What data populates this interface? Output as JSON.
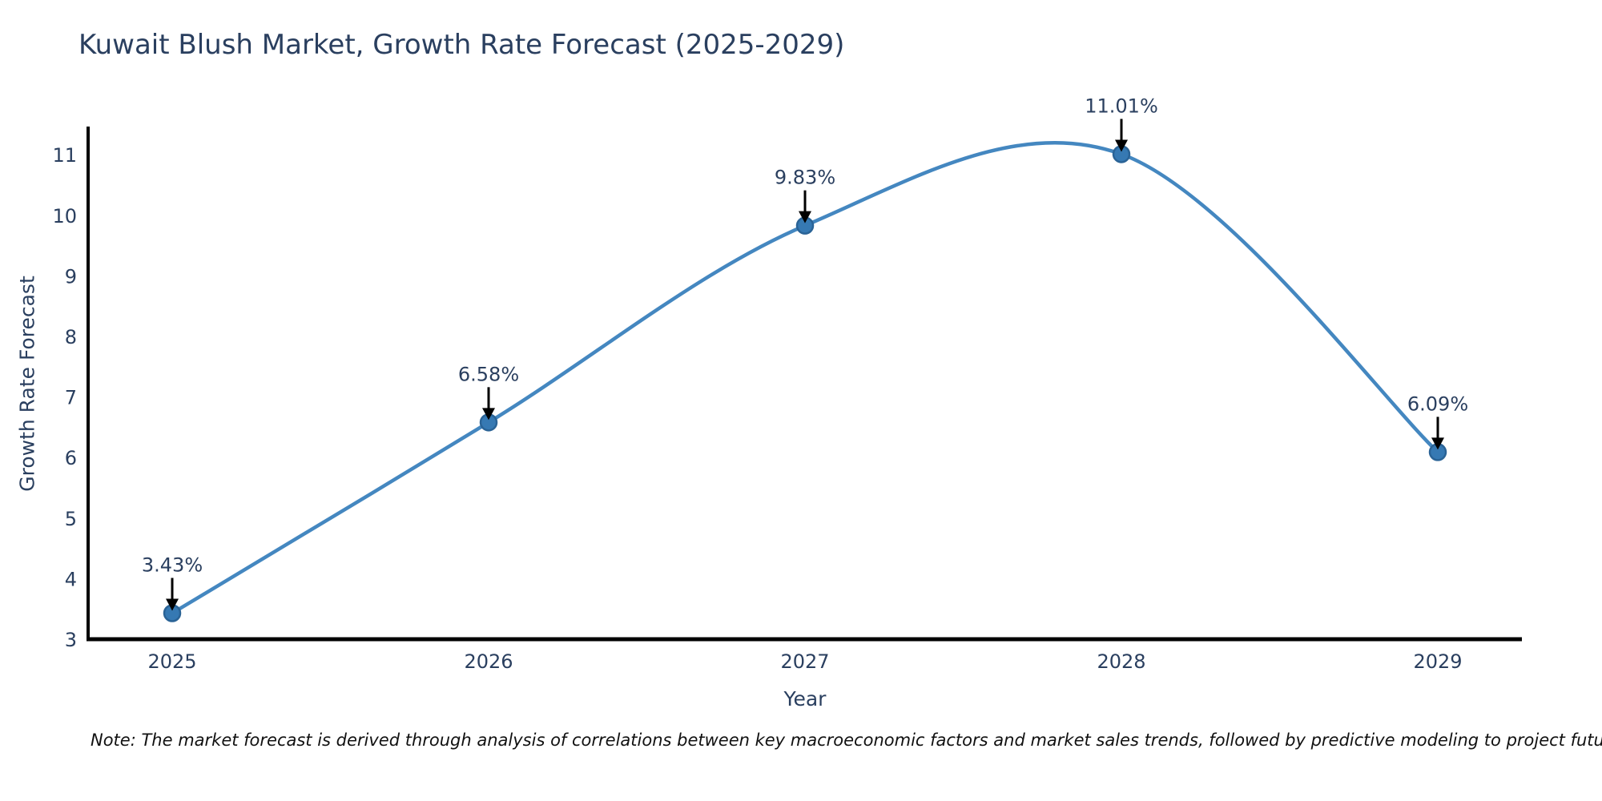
{
  "note": {
    "text": "Note: The market forecast is derived through analysis of correlations between key macroeconomic factors and market sales trends, followed by predictive modeling to project future sales"
  },
  "chart_data": {
    "type": "line",
    "title": "Kuwait Blush Market, Growth Rate Forecast (2025-2029)",
    "xlabel": "Year",
    "ylabel": "Growth Rate Forecast",
    "x": [
      2025,
      2026,
      2027,
      2028,
      2029
    ],
    "series": [
      {
        "name": "Growth Rate Forecast",
        "values": [
          3.43,
          6.58,
          9.83,
          11.01,
          6.09
        ]
      }
    ],
    "point_labels": [
      "3.43%",
      "6.58%",
      "9.83%",
      "11.01%",
      "6.09%"
    ],
    "yticks": [
      3,
      4,
      5,
      6,
      7,
      8,
      9,
      10,
      11
    ],
    "ylim": [
      3,
      11.47
    ],
    "line_shape": "spline",
    "grid": false,
    "legend": false,
    "colors": {
      "line": "#4487c0",
      "marker_fill": "#3679b3",
      "marker_edge": "#2a6396",
      "axis": "#000000",
      "arrow": "#000000",
      "text": "#2a3f5f"
    }
  }
}
